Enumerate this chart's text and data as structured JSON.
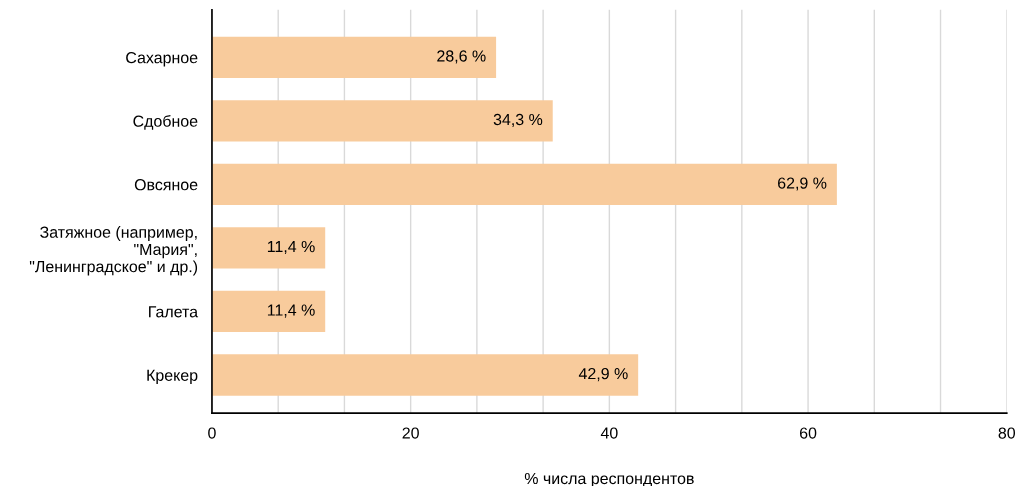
{
  "chart_data": {
    "type": "bar",
    "orientation": "horizontal",
    "xlabel": "% числа респондентов",
    "categories": [
      "Сахарное",
      "Сдобное",
      "Овсяное",
      "Затяжное (например,\n\"Мария\",\n\"Ленинградское\" и др.)",
      "Галета",
      "Крекер"
    ],
    "values": [
      28.6,
      34.3,
      62.9,
      11.4,
      11.4,
      42.9
    ],
    "value_labels": [
      "28,6 %",
      "34,3 %",
      "62,9 %",
      "11,4 %",
      "11,4 %",
      "42,9 %"
    ],
    "color": "#f8cb9c",
    "xlim": [
      0,
      80
    ],
    "xticks": [
      0,
      {
        "value": 6.667,
        "label": null
      },
      {
        "value": 13.333,
        "label": null
      },
      20,
      {
        "value": 26.667,
        "label": null
      },
      {
        "value": 33.333,
        "label": null
      },
      40,
      {
        "value": 46.667,
        "label": null
      },
      {
        "value": 53.333,
        "label": null
      },
      60,
      {
        "value": 66.667,
        "label": null
      },
      {
        "value": 73.333,
        "label": null
      },
      80
    ],
    "grid": "x"
  }
}
